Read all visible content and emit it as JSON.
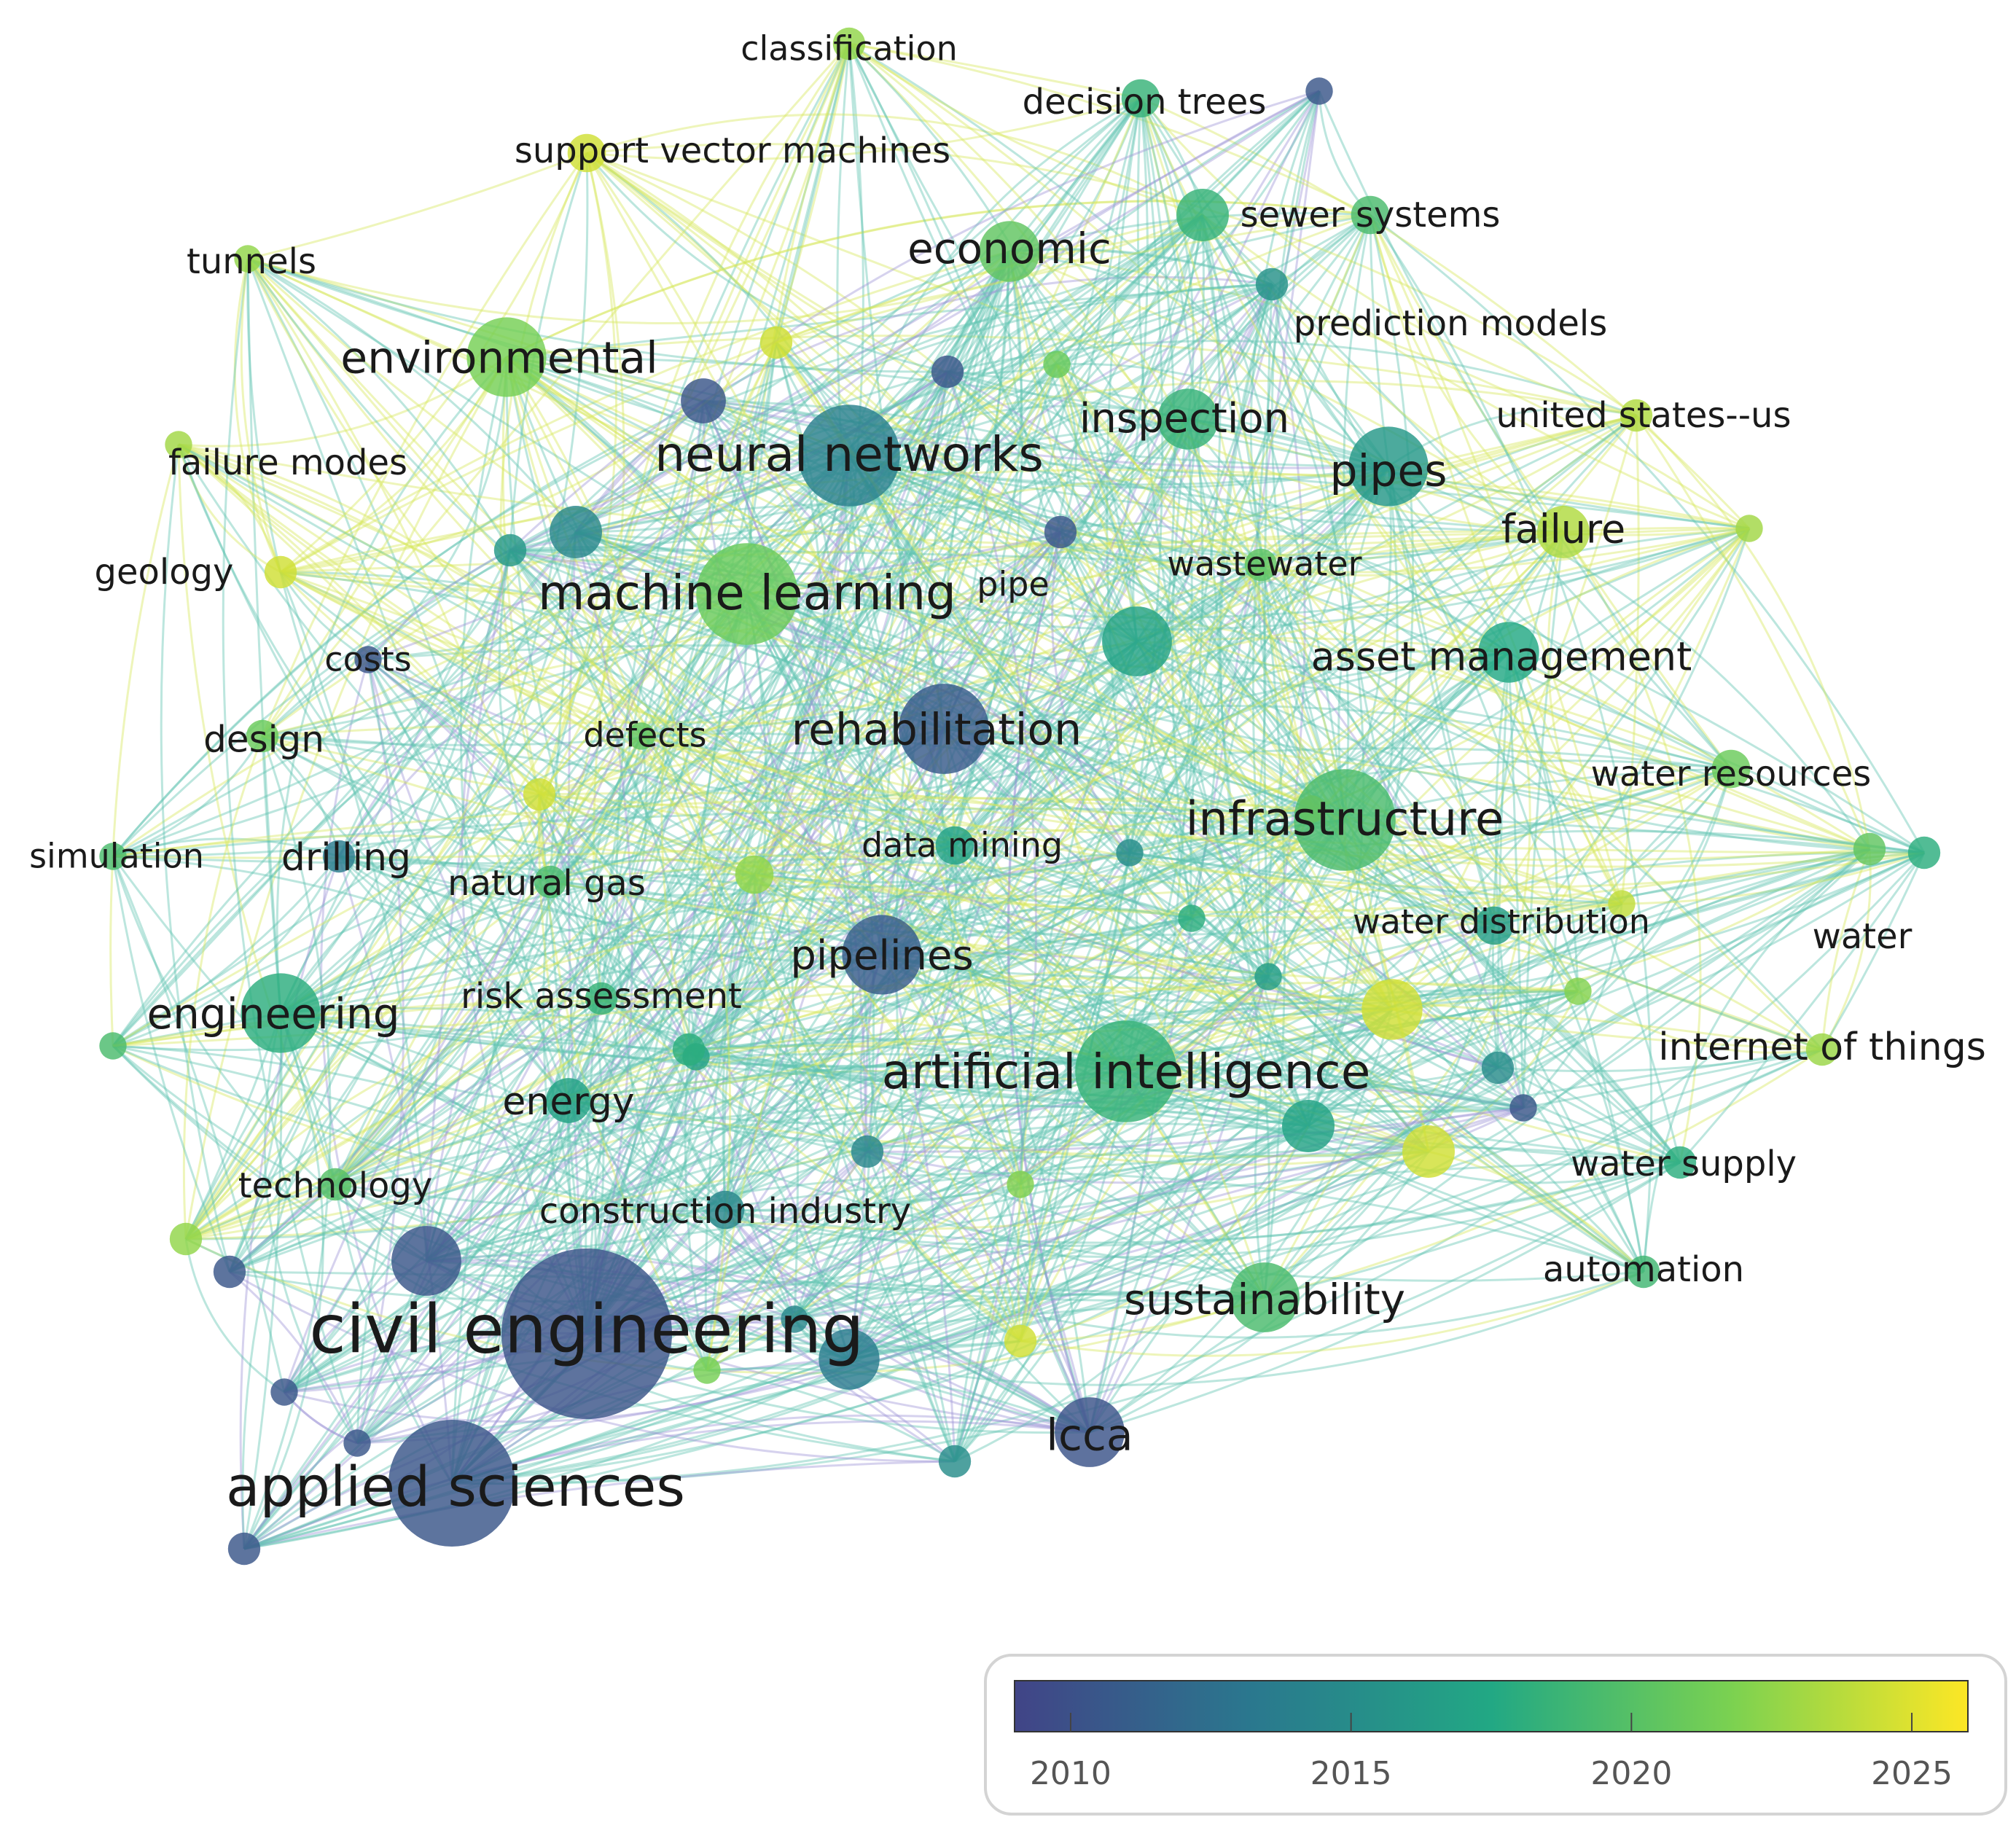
{
  "palette": [
    "#414487",
    "#2a788e",
    "#22a884",
    "#7ad151",
    "#fde725"
  ],
  "edge_colors": {
    "old": "#9e94d6",
    "mid": "#5fc3b0",
    "new": "#d6e85a"
  },
  "legend": {
    "ticks": [
      2010,
      2015,
      2020,
      2025
    ],
    "range": [
      2009,
      2026
    ]
  },
  "nodes": [
    {
      "id": "civil-engineering",
      "label": "civil engineering",
      "year": 2010.3,
      "weight": 10
    },
    {
      "id": "applied-sciences",
      "label": "applied sciences",
      "year": 2010.5,
      "weight": 8.5
    },
    {
      "id": "machine-learning",
      "label": "machine learning",
      "year": 2021.0,
      "weight": 7.5
    },
    {
      "id": "neural-networks",
      "label": "neural networks",
      "year": 2014.0,
      "weight": 7.5
    },
    {
      "id": "artificial-intelligence",
      "label": "artificial intelligence",
      "year": 2018.5,
      "weight": 7.5
    },
    {
      "id": "infrastructure",
      "label": "infrastructure",
      "year": 2019.5,
      "weight": 7.5
    },
    {
      "id": "rehabilitation",
      "label": "rehabilitation",
      "year": 2010.8,
      "weight": 7
    },
    {
      "id": "pipelines",
      "label": "pipelines",
      "year": 2011.0,
      "weight": 6.5
    },
    {
      "id": "environmental",
      "label": "environmental",
      "year": 2021.5,
      "weight": 6.5
    },
    {
      "id": "pipes",
      "label": "pipes",
      "year": 2016.0,
      "weight": 6.5
    },
    {
      "id": "engineering",
      "label": "engineering",
      "year": 2018.0,
      "weight": 6.5
    },
    {
      "id": "sustainability",
      "label": "sustainability",
      "year": 2019.5,
      "weight": 6
    },
    {
      "id": "lcca",
      "label": "lcca",
      "year": 2010.2,
      "weight": 6
    },
    {
      "id": "economic",
      "label": "economic",
      "year": 2020.5,
      "weight": 5.5
    },
    {
      "id": "inspection",
      "label": "inspection",
      "year": 2018.5,
      "weight": 5.5
    },
    {
      "id": "asset-management",
      "label": "asset management",
      "year": 2017.5,
      "weight": 5.5
    },
    {
      "id": "failure",
      "label": "failure",
      "year": 2023.5,
      "weight": 5
    },
    {
      "id": "energy",
      "label": "energy",
      "year": 2017.0,
      "weight": 4.5
    },
    {
      "id": "sewer-systems",
      "label": "sewer systems",
      "year": 2019.5,
      "weight": 4
    },
    {
      "id": "water-resources",
      "label": "water resources",
      "year": 2021.0,
      "weight": 4
    },
    {
      "id": "water-distribution",
      "label": "water distribution",
      "year": 2016.5,
      "weight": 4
    },
    {
      "id": "data-mining",
      "label": "data mining",
      "year": 2017.0,
      "weight": 4
    },
    {
      "id": "construction-industry",
      "label": "construction industry",
      "year": 2014.5,
      "weight": 4
    },
    {
      "id": "support-vector-machines",
      "label": "support vector machines",
      "year": 2024.5,
      "weight": 4
    },
    {
      "id": "decision-trees",
      "label": "decision trees",
      "year": 2018.5,
      "weight": 4
    },
    {
      "id": "classification",
      "label": "classification",
      "year": 2022.5,
      "weight": 3.5
    },
    {
      "id": "prediction-models",
      "label": "prediction models",
      "year": 2015.5,
      "weight": 3.5
    },
    {
      "id": "united-states-us",
      "label": "united states--us",
      "year": 2023.5,
      "weight": 3.5
    },
    {
      "id": "wastewater",
      "label": "wastewater",
      "year": 2020.5,
      "weight": 3.5
    },
    {
      "id": "internet-of-things",
      "label": "internet of things",
      "year": 2022.8,
      "weight": 3.5
    },
    {
      "id": "water-supply",
      "label": "water supply",
      "year": 2018.0,
      "weight": 3.5
    },
    {
      "id": "automation",
      "label": "automation",
      "year": 2019.0,
      "weight": 3.5
    },
    {
      "id": "water",
      "label": "water",
      "year": 2020.5,
      "weight": 3.5
    },
    {
      "id": "risk-assessment",
      "label": "risk assessment",
      "year": 2018.5,
      "weight": 3.5
    },
    {
      "id": "natural-gas",
      "label": "natural gas",
      "year": 2019.5,
      "weight": 3.5
    },
    {
      "id": "drilling",
      "label": "drilling",
      "year": 2013.5,
      "weight": 3.5
    },
    {
      "id": "simulation",
      "label": "simulation",
      "year": 2019.5,
      "weight": 3
    },
    {
      "id": "design",
      "label": "design",
      "year": 2021.0,
      "weight": 3.5
    },
    {
      "id": "defects",
      "label": "defects",
      "year": 2020.5,
      "weight": 3
    },
    {
      "id": "costs",
      "label": "costs",
      "year": 2010.5,
      "weight": 3
    },
    {
      "id": "geology",
      "label": "geology",
      "year": 2024.5,
      "weight": 3.5
    },
    {
      "id": "failure-modes",
      "label": "failure modes",
      "year": 2023.0,
      "weight": 3
    },
    {
      "id": "tunnels",
      "label": "tunnels",
      "year": 2022.5,
      "weight": 3
    },
    {
      "id": "technology",
      "label": "technology",
      "year": 2020.0,
      "weight": 3.5
    },
    {
      "id": "pipe",
      "label": "pipe",
      "year": 2010.5,
      "weight": 3.5
    },
    {
      "id": "n1",
      "label": "",
      "year": 2010.5,
      "weight": 6
    },
    {
      "id": "n2",
      "label": "",
      "year": 2013.5,
      "weight": 5.5
    },
    {
      "id": "n3",
      "label": "",
      "year": 2017.0,
      "weight": 6
    },
    {
      "id": "n4",
      "label": "",
      "year": 2024.5,
      "weight": 5.5
    },
    {
      "id": "n5",
      "label": "",
      "year": 2024.5,
      "weight": 5
    },
    {
      "id": "n6",
      "label": "",
      "year": 2017.0,
      "weight": 5
    },
    {
      "id": "n7",
      "label": "",
      "year": 2018.5,
      "weight": 5
    },
    {
      "id": "n8",
      "label": "",
      "year": 2014.5,
      "weight": 5
    },
    {
      "id": "n9",
      "label": "",
      "year": 2010.5,
      "weight": 4.5
    },
    {
      "id": "n10",
      "label": "",
      "year": 2022.5,
      "weight": 4
    },
    {
      "id": "n11",
      "label": "",
      "year": 2015.0,
      "weight": 3.5
    },
    {
      "id": "n12",
      "label": "",
      "year": 2010.5,
      "weight": 3.5
    },
    {
      "id": "n13",
      "label": "",
      "year": 2024.5,
      "weight": 3.5
    },
    {
      "id": "n14",
      "label": "",
      "year": 2022.5,
      "weight": 3.5
    },
    {
      "id": "n15",
      "label": "",
      "year": 2010.5,
      "weight": 3.5
    },
    {
      "id": "n16",
      "label": "",
      "year": 2024.5,
      "weight": 3.5
    },
    {
      "id": "n17",
      "label": "",
      "year": 2015.0,
      "weight": 3.5
    },
    {
      "id": "n18",
      "label": "",
      "year": 2010.5,
      "weight": 3.5
    },
    {
      "id": "n19",
      "label": "",
      "year": 2018.0,
      "weight": 3.5
    },
    {
      "id": "n20",
      "label": "",
      "year": 2014.5,
      "weight": 3.5
    },
    {
      "id": "n21",
      "label": "",
      "year": 2010.5,
      "weight": 3
    },
    {
      "id": "n22",
      "label": "",
      "year": 2023.0,
      "weight": 3
    },
    {
      "id": "n23",
      "label": "",
      "year": 2021.0,
      "weight": 3
    },
    {
      "id": "n24",
      "label": "",
      "year": 2017.0,
      "weight": 3
    },
    {
      "id": "n25",
      "label": "",
      "year": 2010.5,
      "weight": 3
    },
    {
      "id": "n26",
      "label": "",
      "year": 2024.5,
      "weight": 3.5
    },
    {
      "id": "n27",
      "label": "",
      "year": 2018.0,
      "weight": 3.5
    },
    {
      "id": "n28",
      "label": "",
      "year": 2014.5,
      "weight": 3
    },
    {
      "id": "n29",
      "label": "",
      "year": 2022.0,
      "weight": 3
    },
    {
      "id": "n30",
      "label": "",
      "year": 2018.0,
      "weight": 3
    },
    {
      "id": "n31",
      "label": "",
      "year": 2015.0,
      "weight": 3
    },
    {
      "id": "n32",
      "label": "",
      "year": 2024.5,
      "weight": 3
    },
    {
      "id": "n33",
      "label": "",
      "year": 2016.0,
      "weight": 3.5
    },
    {
      "id": "n34",
      "label": "",
      "year": 2010.5,
      "weight": 3
    },
    {
      "id": "n35",
      "label": "",
      "year": 2019.5,
      "weight": 3
    },
    {
      "id": "n36",
      "label": "",
      "year": 2024.0,
      "weight": 3
    },
    {
      "id": "n37",
      "label": "",
      "year": 2021.5,
      "weight": 3
    },
    {
      "id": "n38",
      "label": "",
      "year": 2022.0,
      "weight": 3
    },
    {
      "id": "n39",
      "label": "",
      "year": 2016.5,
      "weight": 3
    },
    {
      "id": "n40",
      "label": "",
      "year": 2010.5,
      "weight": 3
    }
  ]
}
